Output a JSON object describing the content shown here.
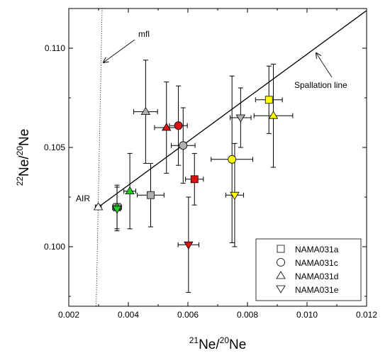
{
  "chart_data": {
    "type": "scatter",
    "xlim": [
      0.002,
      0.012
    ],
    "ylim": [
      0.097,
      0.112
    ],
    "x_ticks": [
      {
        "value": 0.002,
        "label": "0.002"
      },
      {
        "value": 0.004,
        "label": "0.004"
      },
      {
        "value": 0.006,
        "label": "0.006"
      },
      {
        "value": 0.008,
        "label": "0.008"
      },
      {
        "value": 0.01,
        "label": "0.010"
      },
      {
        "value": 0.012,
        "label": "0.012"
      }
    ],
    "y_ticks": [
      {
        "value": 0.1,
        "label": "0.100"
      },
      {
        "value": 0.105,
        "label": "0.105"
      },
      {
        "value": 0.11,
        "label": "0.110"
      }
    ],
    "xlabel": {
      "sup1": "21",
      "base1": "Ne/",
      "sup2": "20",
      "base2": "Ne"
    },
    "ylabel": {
      "sup1": "22",
      "base1": "Ne/",
      "sup2": "20",
      "base2": "Ne"
    },
    "grid": false,
    "legend": {
      "position": "bottom-right",
      "entries": [
        {
          "marker": "square",
          "label": "NAMA031a"
        },
        {
          "marker": "circle",
          "label": "NAMA031c"
        },
        {
          "marker": "triangle-up",
          "label": "NAMA031d"
        },
        {
          "marker": "triangle-down",
          "label": "NAMA031e"
        }
      ]
    },
    "lines": [
      {
        "label": "Spallation line",
        "x": [
          0.003,
          0.012
        ],
        "y": [
          0.102,
          0.1119
        ],
        "style": "solid"
      },
      {
        "label": "mfl",
        "x": [
          0.00292,
          0.00312
        ],
        "y": [
          0.097,
          0.112
        ],
        "style": "dotted"
      }
    ],
    "annotations": [
      {
        "text": "mfl",
        "arrow_to": [
          0.00305,
          0.1094
        ]
      },
      {
        "text": "Spallation line",
        "arrow_to": [
          0.01035,
          0.1101
        ]
      },
      {
        "text": "AIR",
        "arrow_to": null
      }
    ],
    "points": [
      {
        "marker": "triangle-up",
        "color": "#ffffff",
        "x": 0.00299,
        "y": 0.102,
        "xerr": 0.0001,
        "yerr": 0.0001
      },
      {
        "marker": "square",
        "color": "#b0b0b0",
        "x": 0.00362,
        "y": 0.102,
        "xerr": 0.00015,
        "yerr": 0.0001
      },
      {
        "marker": "triangle-up",
        "color": "#22cc22",
        "x": 0.00362,
        "y": 0.102,
        "xerr": 0.0001,
        "yerr": 0.0011
      },
      {
        "marker": "triangle-down",
        "color": "#22cc22",
        "x": 0.00362,
        "y": 0.1019,
        "xerr": 0.0001,
        "yerr": 0.0011
      },
      {
        "marker": "triangle-up",
        "color": "#22cc22",
        "x": 0.00405,
        "y": 0.1028,
        "xerr": 0.0002,
        "yerr": 0.0019
      },
      {
        "marker": "square",
        "color": "#b0b0b0",
        "x": 0.00475,
        "y": 0.1026,
        "xerr": 0.00045,
        "yerr": 0.0016
      },
      {
        "marker": "triangle-up",
        "color": "#b0b0b0",
        "x": 0.00458,
        "y": 0.1068,
        "xerr": 0.0004,
        "yerr": 0.0026
      },
      {
        "marker": "triangle-up",
        "color": "#dd1111",
        "x": 0.00528,
        "y": 0.106,
        "xerr": 0.0004,
        "yerr": 0.0023
      },
      {
        "marker": "circle",
        "color": "#dd1111",
        "x": 0.00568,
        "y": 0.1061,
        "xerr": 0.0003,
        "yerr": 0.002
      },
      {
        "marker": "circle",
        "color": "#b0b0b0",
        "x": 0.00584,
        "y": 0.1051,
        "xerr": 0.0004,
        "yerr": 0.0019
      },
      {
        "marker": "square",
        "color": "#dd1111",
        "x": 0.00622,
        "y": 0.1034,
        "xerr": 0.0003,
        "yerr": 0.0013
      },
      {
        "marker": "triangle-down",
        "color": "#dd1111",
        "x": 0.00602,
        "y": 0.1001,
        "xerr": 0.00035,
        "yerr": 0.0024
      },
      {
        "marker": "circle",
        "color": "#ffff00",
        "x": 0.00748,
        "y": 0.1044,
        "xerr": 0.0007,
        "yerr": 0.0042
      },
      {
        "marker": "triangle-down",
        "color": "#ffff00",
        "x": 0.00757,
        "y": 0.1026,
        "xerr": 0.0003,
        "yerr": 0.0026
      },
      {
        "marker": "triangle-down",
        "color": "#b0b0b0",
        "x": 0.00777,
        "y": 0.1065,
        "xerr": 0.00035,
        "yerr": 0.0015
      },
      {
        "marker": "square",
        "color": "#ffff00",
        "x": 0.00872,
        "y": 0.1074,
        "xerr": 0.00045,
        "yerr": 0.0017
      },
      {
        "marker": "triangle-up",
        "color": "#ffff00",
        "x": 0.00887,
        "y": 0.1066,
        "xerr": 0.00065,
        "yerr": 0.0026
      }
    ]
  }
}
